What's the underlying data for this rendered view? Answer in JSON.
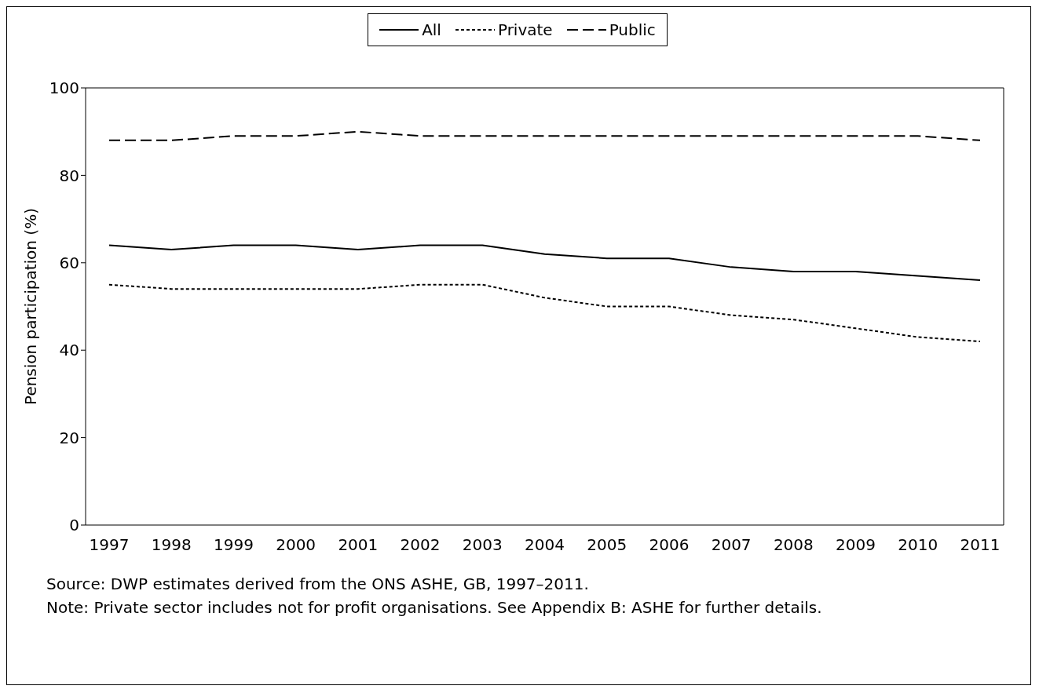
{
  "chart_data": {
    "type": "line",
    "ylabel": "Pension participation (%)",
    "categories": [
      "1997",
      "1998",
      "1999",
      "2000",
      "2001",
      "2002",
      "2003",
      "2004",
      "2005",
      "2006",
      "2007",
      "2008",
      "2009",
      "2010",
      "2011"
    ],
    "series": [
      {
        "name": "Private",
        "color": "#000000",
        "line_style": "dotted",
        "values": [
          55,
          54,
          54,
          54,
          54,
          55,
          55,
          52,
          50,
          50,
          48,
          47,
          45,
          43,
          42
        ]
      },
      {
        "name": "Public",
        "color": "#000000",
        "line_style": "dashed",
        "values": [
          88,
          88,
          89,
          89,
          90,
          89,
          89,
          89,
          89,
          89,
          89,
          89,
          89,
          89,
          88
        ]
      },
      {
        "name": "All",
        "color": "#000000",
        "line_style": "solid",
        "values": [
          64,
          63,
          64,
          64,
          63,
          64,
          64,
          62,
          61,
          61,
          59,
          58,
          58,
          57,
          56
        ]
      }
    ],
    "ylim": [
      0,
      100
    ],
    "yticks": [
      0,
      20,
      40,
      60,
      80,
      100
    ],
    "grid": false,
    "legend": "top",
    "marker": "none",
    "annotations": [
      "Source: DWP estimates derived from the ONS ASHE, GB, 1997–2011.",
      "Note: Private sector includes not for profit organisations. See Appendix B: ASHE for further details."
    ]
  }
}
